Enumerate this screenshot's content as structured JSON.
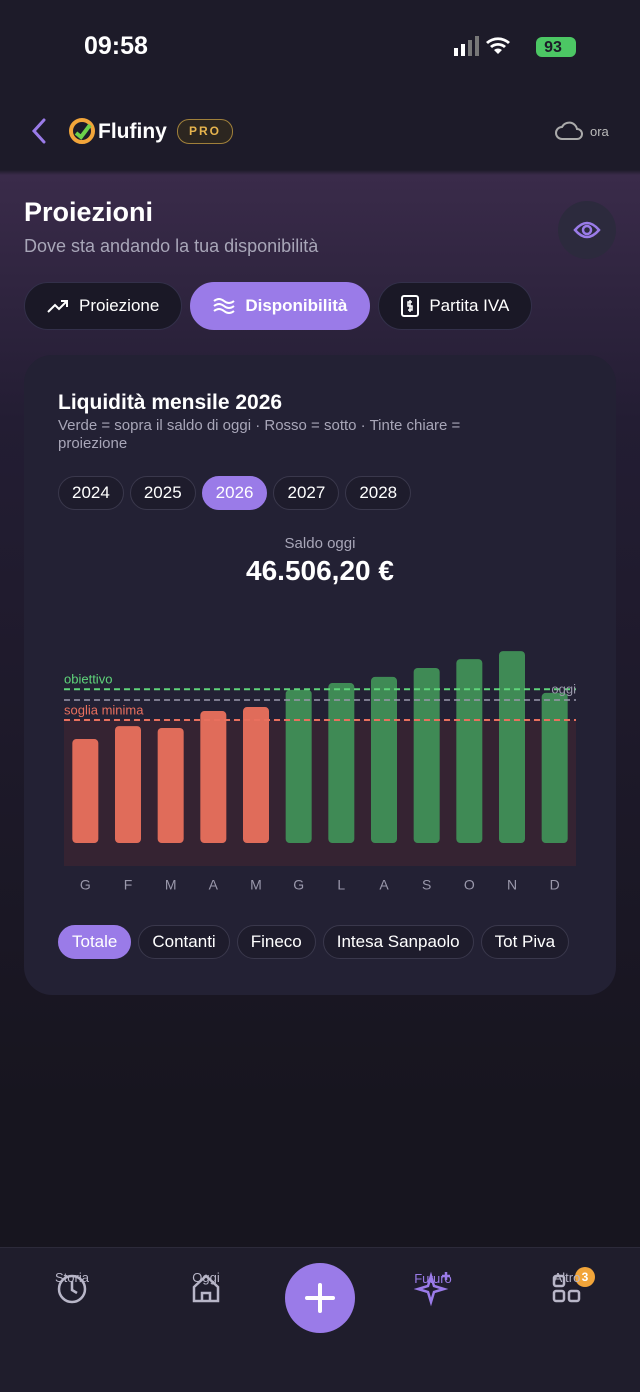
{
  "status_bar": {
    "time": "09:58",
    "battery": "93"
  },
  "header": {
    "app_name": "Flufiny",
    "badge": "PRO",
    "sync": "ora"
  },
  "page": {
    "title": "Proiezioni",
    "subtitle": "Dove sta andando la tua disponibilità"
  },
  "tabs": {
    "items": [
      "Proiezione",
      "Disponibilità",
      "Partita IVA"
    ],
    "active": 1
  },
  "card": {
    "title": "Liquidità mensile 2026",
    "subtitle": "Verde = sopra il saldo di oggi · Rosso = sotto · Tinte chiare = proiezione",
    "years": {
      "items": [
        "2024",
        "2025",
        "2026",
        "2027",
        "2028"
      ],
      "active": 2
    },
    "saldo_label": "Saldo oggi",
    "saldo_text": "46.506,20 €",
    "accounts": {
      "items": [
        "Totale",
        "Contanti",
        "Fineco",
        "Intesa Sanpaolo",
        "Tot Piva"
      ],
      "active": 0
    }
  },
  "chart_data": {
    "type": "bar",
    "categories": [
      "G",
      "F",
      "M",
      "A",
      "M",
      "G",
      "L",
      "A",
      "S",
      "O",
      "N",
      "D"
    ],
    "values": [
      33800,
      38000,
      37400,
      42900,
      44200,
      49800,
      52000,
      54000,
      56900,
      59800,
      62400,
      48800
    ],
    "ylim": [
      0,
      66000
    ],
    "above_color": "#3f8a55",
    "below_color": "#e06c5a",
    "today": {
      "label": "oggi",
      "value": 46506.2,
      "color": "#9a98ab"
    },
    "reference_lines": [
      {
        "label": "obiettivo",
        "value": 50000,
        "color": "#5fd47a"
      },
      {
        "label": "soglia minima",
        "value": 40000,
        "color": "#e9705e"
      }
    ]
  },
  "nav": {
    "items": [
      "Storia",
      "Oggi",
      "Futuro",
      "Altro"
    ],
    "active": 2,
    "badge": "3"
  }
}
